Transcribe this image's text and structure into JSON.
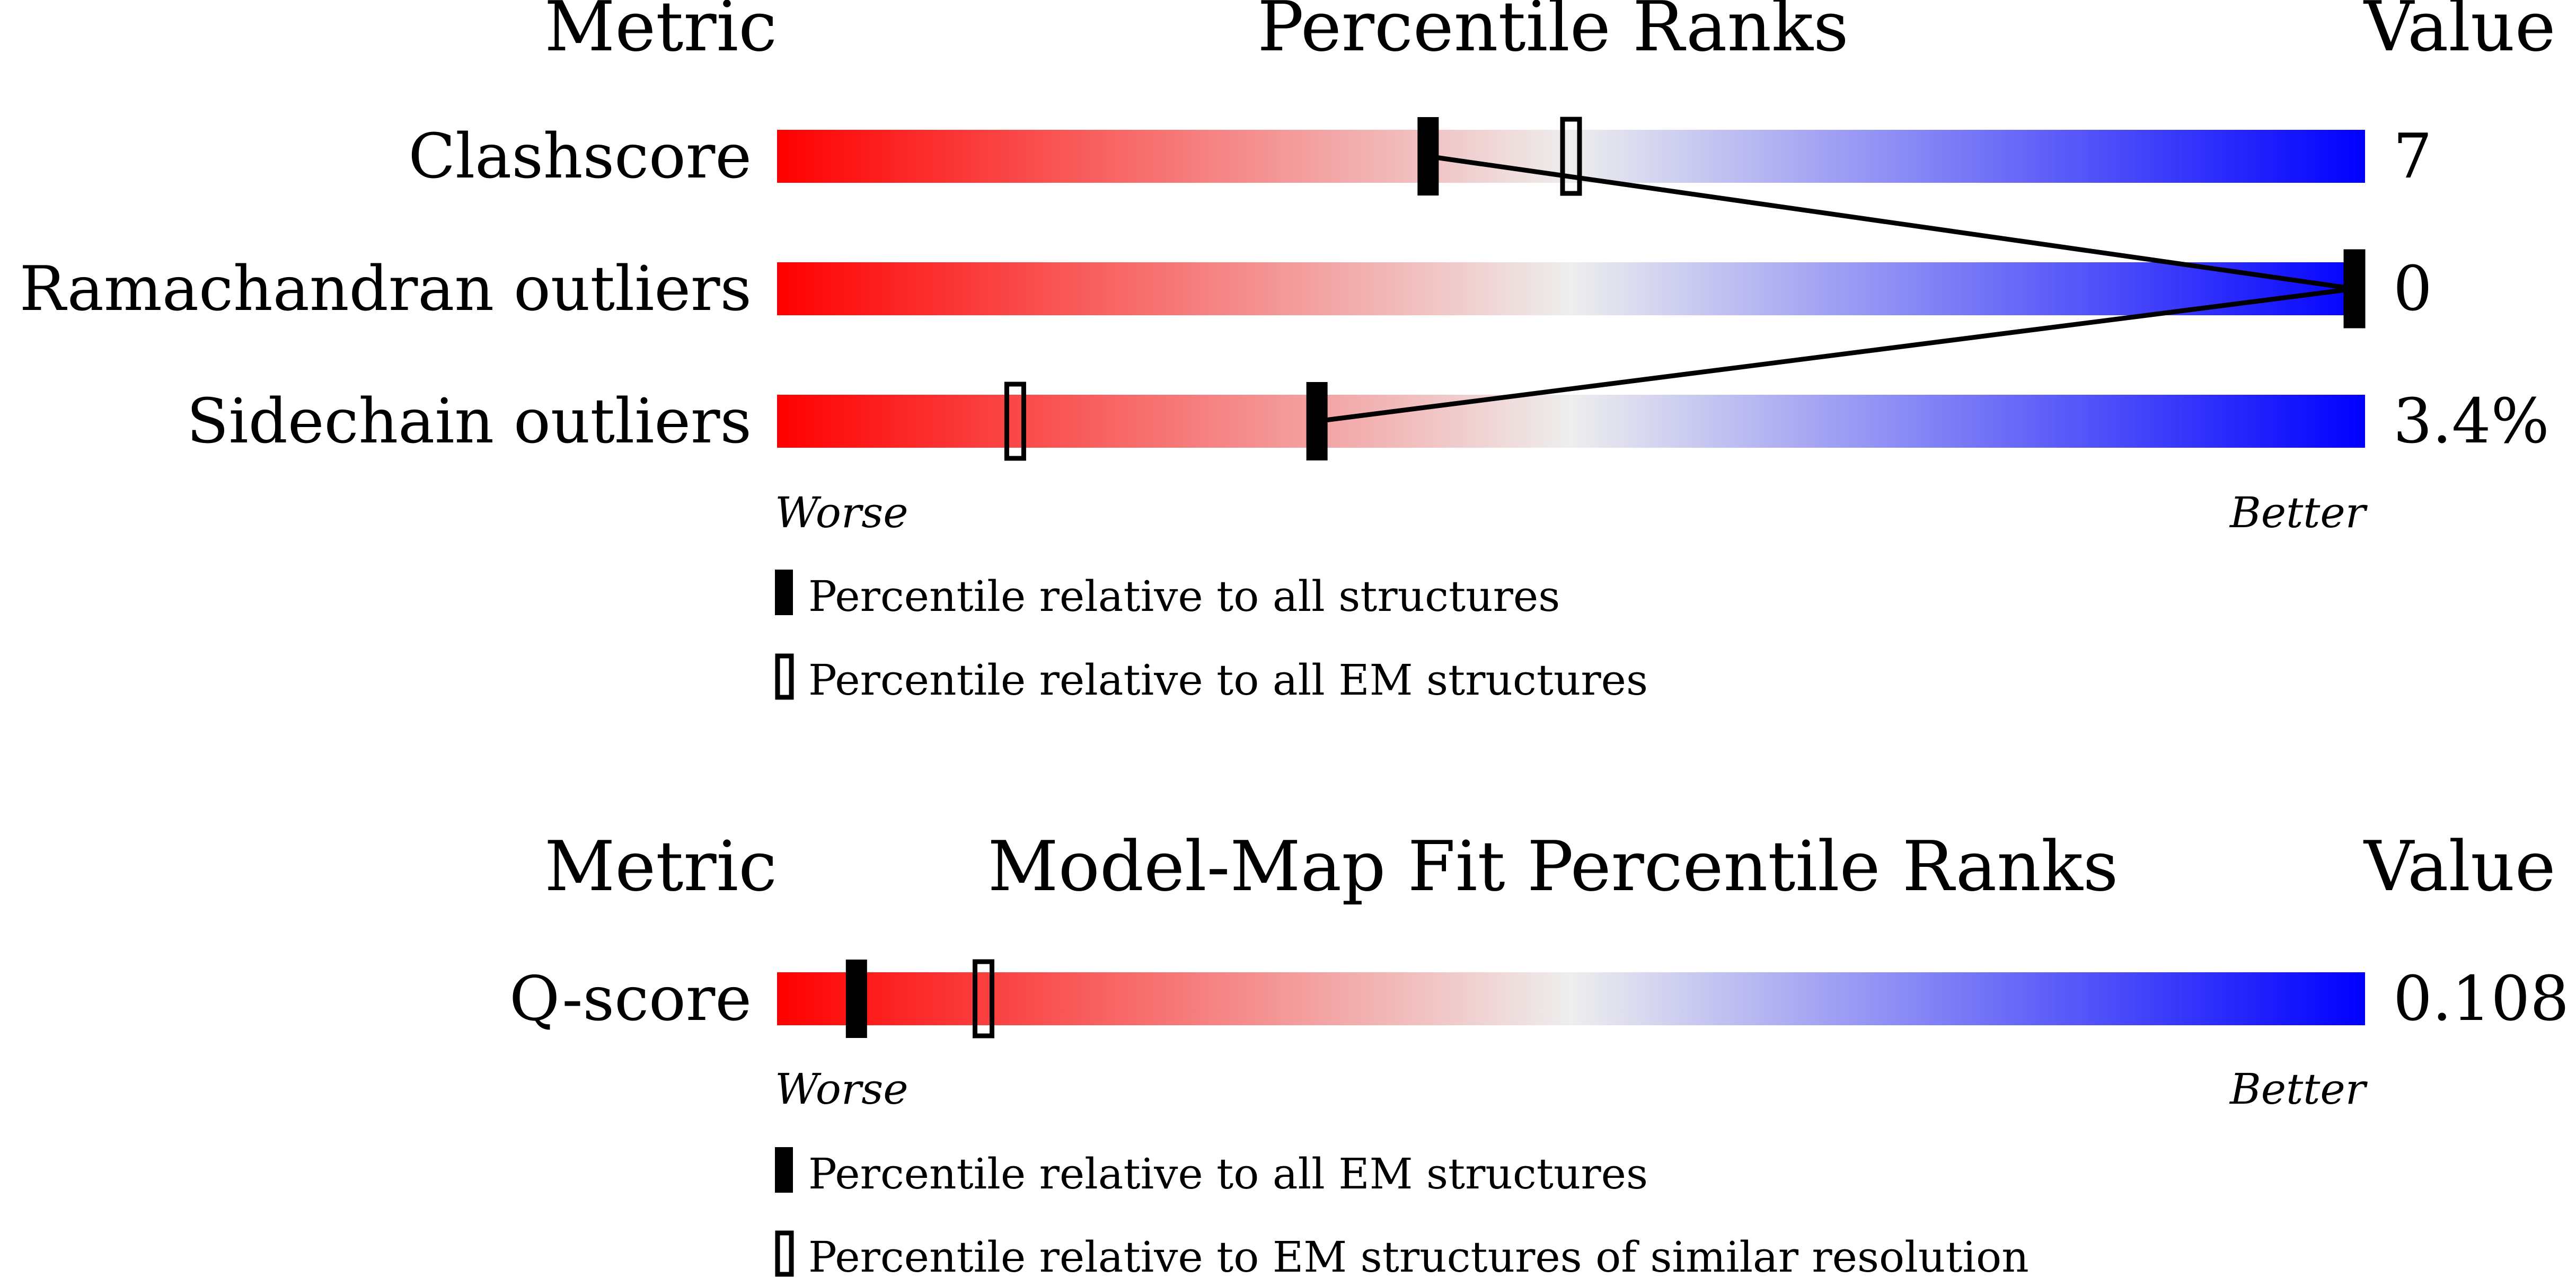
{
  "chart_data": [
    {
      "type": "bar",
      "headers": {
        "metric": "Metric",
        "ranks": "Percentile Ranks",
        "value": "Value"
      },
      "axis": {
        "worse": "Worse",
        "better": "Better"
      },
      "colors": {
        "worse": "#ff0000",
        "middle": "#eeeeee",
        "better": "#0000ff"
      },
      "metrics": [
        {
          "name": "Clashscore",
          "value": "7",
          "percentile_all": 41,
          "percentile_em": 50
        },
        {
          "name": "Ramachandran outliers",
          "value": "0",
          "percentile_all": 100,
          "percentile_em": 100
        },
        {
          "name": "Sidechain outliers",
          "value": "3.4%",
          "percentile_all": 34,
          "percentile_em": 15
        }
      ],
      "legend": [
        {
          "marker": "filled",
          "text": "Percentile relative to all structures"
        },
        {
          "marker": "open",
          "text": "Percentile relative to all EM structures"
        }
      ]
    },
    {
      "type": "bar",
      "headers": {
        "metric": "Metric",
        "ranks": "Model-Map Fit Percentile Ranks",
        "value": "Value"
      },
      "axis": {
        "worse": "Worse",
        "better": "Better"
      },
      "colors": {
        "worse": "#ff0000",
        "middle": "#eeeeee",
        "better": "#0000ff"
      },
      "metrics": [
        {
          "name": "Q-score",
          "value": "0.108",
          "percentile_all": 5,
          "percentile_em": 13
        }
      ],
      "legend": [
        {
          "marker": "filled",
          "text": "Percentile relative to all EM structures"
        },
        {
          "marker": "open",
          "text": "Percentile relative to EM structures of similar resolution"
        }
      ]
    }
  ]
}
